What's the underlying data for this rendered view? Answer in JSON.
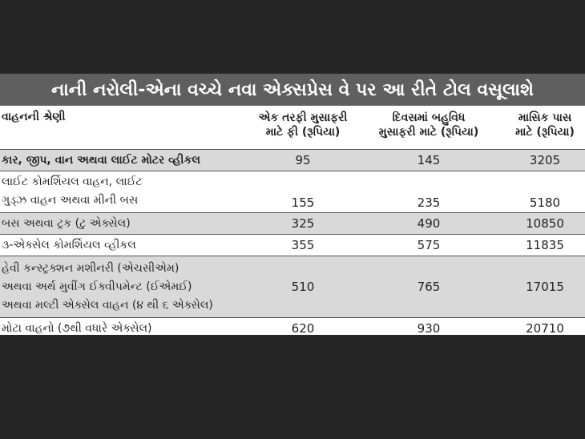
{
  "title": "નાની નરોલી-એના વચ્ચે નવા એક્સપ્રેસ વે પર આ રીતે ટોલ વસૂલાશે",
  "headers": {
    "category": "વાહનની શ્રેણી",
    "one_way": [
      "એક તરફી મુસાફરી",
      "માટે ફી (રૂપિયા)"
    ],
    "multiple": [
      "દિવસમાં બહુવિધ",
      "મુસાફરી માટે (રૂપિયા)"
    ],
    "monthly": [
      "માસિક પાસ",
      "માટે (રૂપિયા)"
    ]
  },
  "rows": [
    {
      "name": [
        "કાર, જીપ, વાન અથવા લાઈટ મોટર વ્હીકલ"
      ],
      "one_way": "95",
      "multiple": "145",
      "monthly": "3205"
    },
    {
      "name": [
        "લાઈટ કોમર્શિયલ વાહન, લાઈટ",
        "ગુડ્ઝ વાહન અથવા મીની બસ"
      ],
      "one_way": "155",
      "multiple": "235",
      "monthly": "5180"
    },
    {
      "name": [
        "બસ અથવા ટ્રક (ટુ એક્સેલ)"
      ],
      "one_way": "325",
      "multiple": "490",
      "monthly": "10850"
    },
    {
      "name": [
        "૩-એક્સેલ કોમર્શિયલ વ્હીકલ"
      ],
      "one_way": "355",
      "multiple": "575",
      "monthly": "11835"
    },
    {
      "name": [
        "હેવી કન્સ્ટ્રક્શન મશીનરી (એચસીએમ)",
        "અથવા અર્થ મુવીંગ ઈક્વીપમેન્ટ (ઈએમઈ)",
        "અથવા મલ્ટી એક્સેલ વાહન (૪ થી ૬ એક્સેલ)"
      ],
      "one_way": "510",
      "multiple": "765",
      "monthly": "17015"
    },
    {
      "name": [
        "મોટા વાહનો (૭થી વધારે એક્સેલ)"
      ],
      "one_way": "620",
      "multiple": "930",
      "monthly": "20710"
    }
  ]
}
